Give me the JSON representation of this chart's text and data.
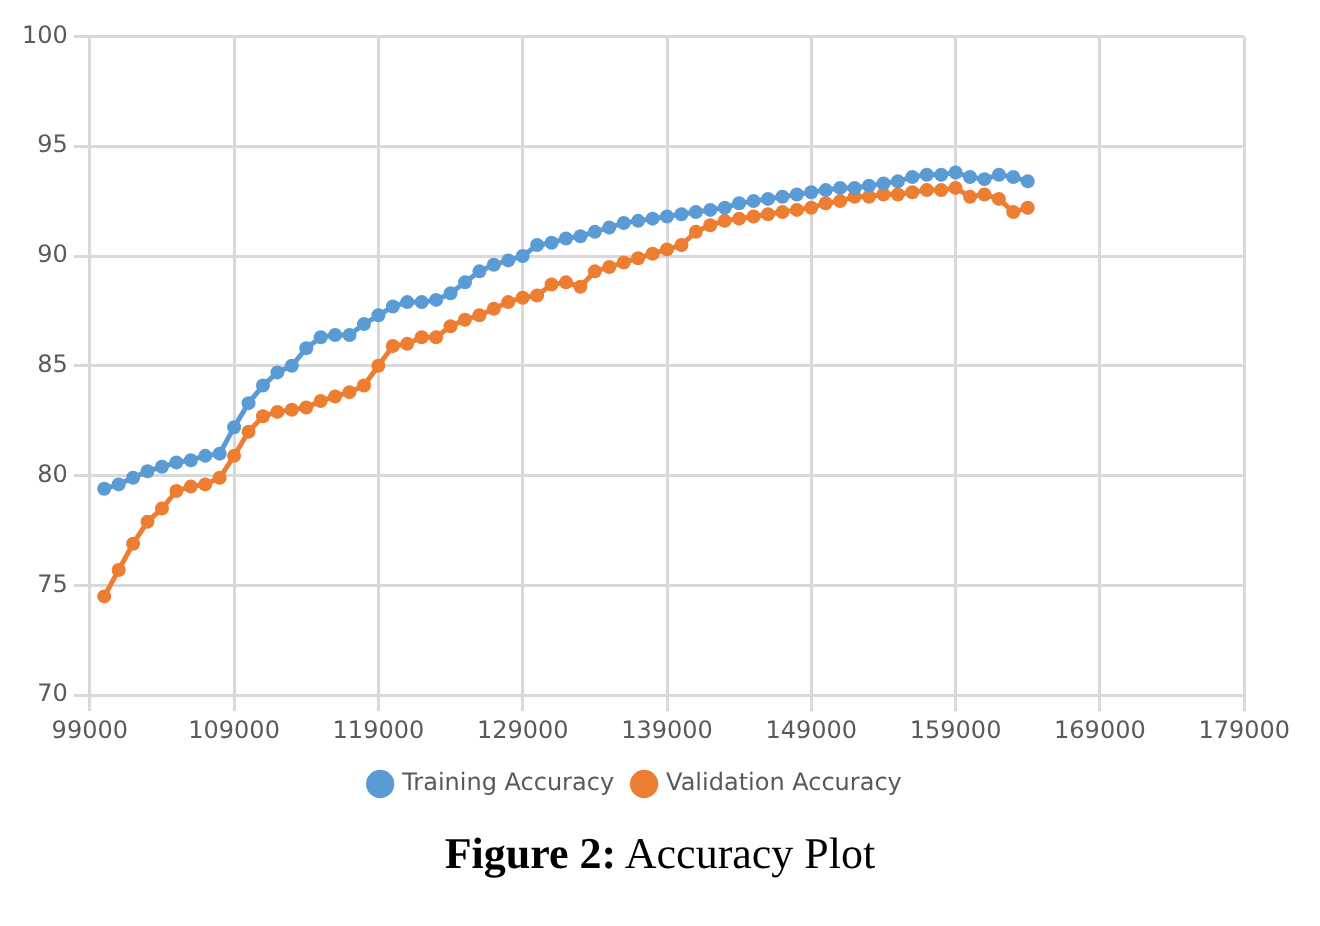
{
  "chart_data": {
    "type": "line",
    "title": "Figure 2: Accuracy Plot",
    "x": [
      100000,
      101000,
      102000,
      103000,
      104000,
      105000,
      106000,
      107000,
      108000,
      109000,
      110000,
      111000,
      112000,
      113000,
      114000,
      115000,
      116000,
      117000,
      118000,
      119000,
      120000,
      121000,
      122000,
      123000,
      124000,
      125000,
      126000,
      127000,
      128000,
      129000,
      130000,
      131000,
      132000,
      133000,
      134000,
      135000,
      136000,
      137000,
      138000,
      139000,
      140000,
      141000,
      142000,
      143000,
      144000,
      145000,
      146000,
      147000,
      148000,
      149000,
      150000,
      151000,
      152000,
      153000,
      154000,
      155000,
      156000,
      157000,
      158000,
      159000,
      160000,
      161000,
      162000,
      163000,
      164000
    ],
    "series": [
      {
        "name": "Training Accuracy",
        "color": "#5b9bd5",
        "values": [
          79.4,
          79.6,
          79.9,
          80.2,
          80.4,
          80.6,
          80.7,
          80.9,
          81.0,
          82.2,
          83.3,
          84.1,
          84.7,
          85.0,
          85.8,
          86.3,
          86.4,
          86.4,
          86.9,
          87.3,
          87.7,
          87.9,
          87.9,
          88.0,
          88.3,
          88.8,
          89.3,
          89.6,
          89.8,
          90.0,
          90.5,
          90.6,
          90.8,
          90.9,
          91.1,
          91.3,
          91.5,
          91.6,
          91.7,
          91.8,
          91.9,
          92.0,
          92.1,
          92.2,
          92.4,
          92.5,
          92.6,
          92.7,
          92.8,
          92.9,
          93.0,
          93.1,
          93.1,
          93.2,
          93.3,
          93.4,
          93.6,
          93.7,
          93.7,
          93.8,
          93.6,
          93.5,
          93.7,
          93.6,
          93.4
        ]
      },
      {
        "name": "Validation Accuracy",
        "color": "#ed7d31",
        "values": [
          74.5,
          75.7,
          76.9,
          77.9,
          78.5,
          79.3,
          79.5,
          79.6,
          79.9,
          80.9,
          82.0,
          82.7,
          82.9,
          83.0,
          83.1,
          83.4,
          83.6,
          83.8,
          84.1,
          85.0,
          85.9,
          86.0,
          86.3,
          86.3,
          86.8,
          87.1,
          87.3,
          87.6,
          87.9,
          88.1,
          88.2,
          88.7,
          88.8,
          88.6,
          89.3,
          89.5,
          89.7,
          89.9,
          90.1,
          90.3,
          90.5,
          91.1,
          91.4,
          91.6,
          91.7,
          91.8,
          91.9,
          92.0,
          92.1,
          92.2,
          92.4,
          92.5,
          92.7,
          92.7,
          92.8,
          92.8,
          92.9,
          93.0,
          93.0,
          93.1,
          92.7,
          92.8,
          92.6,
          92.0,
          92.2
        ]
      }
    ],
    "xlim": [
      99000,
      179000
    ],
    "xticks": [
      99000,
      109000,
      119000,
      129000,
      139000,
      149000,
      159000,
      169000,
      179000
    ],
    "ylim": [
      70,
      100
    ],
    "yticks": [
      70,
      75,
      80,
      85,
      90,
      95,
      100
    ],
    "grid": true,
    "legend": "bottom",
    "marker": "circle",
    "line_style": "solid"
  }
}
